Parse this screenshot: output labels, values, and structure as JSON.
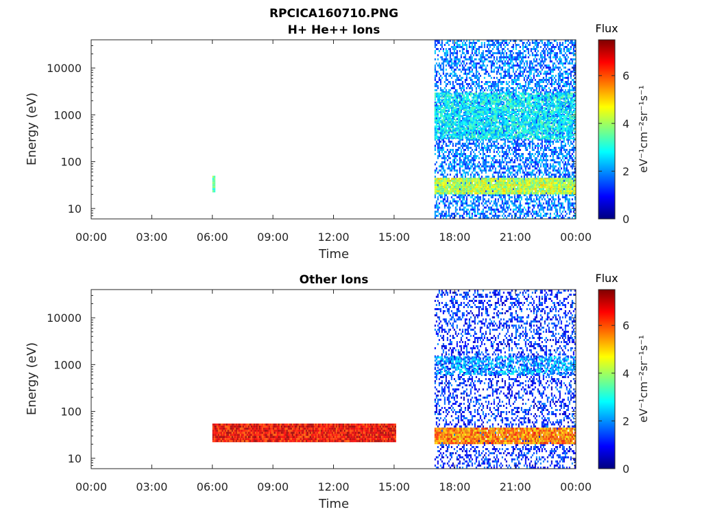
{
  "figure": {
    "title": "RPCICA160710.PNG"
  },
  "colorscale": {
    "stops": [
      "#00007f",
      "#0000ff",
      "#007fff",
      "#00ffff",
      "#7fff7f",
      "#ffff00",
      "#ff7f00",
      "#ff0000",
      "#7f0000"
    ]
  },
  "chart_data": [
    {
      "type": "heatmap",
      "title": "H+ He++ Ions",
      "xlabel": "Time",
      "ylabel": "Energy (eV)",
      "x_ticks": [
        "00:00",
        "03:00",
        "06:00",
        "09:00",
        "12:00",
        "15:00",
        "18:00",
        "21:00",
        "00:00"
      ],
      "xlim_hours": [
        0,
        24
      ],
      "y_scale": "log",
      "y_ticks": [
        {
          "label": "10",
          "value": 10
        },
        {
          "label": "100",
          "value": 100
        },
        {
          "label": "1000",
          "value": 1000
        },
        {
          "label": "10000",
          "value": 10000
        }
      ],
      "ylim": [
        6,
        40000
      ],
      "colorbar": {
        "title": "Flux",
        "unit_label": "eV⁻¹cm⁻²sr⁻¹s⁻¹",
        "ticks": [
          "0",
          "2",
          "4",
          "6"
        ],
        "range": [
          0,
          7.5
        ]
      },
      "regions": [
        {
          "t_start": 6.0,
          "t_end": 6.15,
          "e_min": 22,
          "e_max": 50,
          "flux": 3.4,
          "density": 1.0
        },
        {
          "t_start": 17.0,
          "t_end": 24.0,
          "e_min": 6,
          "e_max": 40000,
          "flux": 1.8,
          "density": 0.55
        },
        {
          "t_start": 17.0,
          "t_end": 24.0,
          "e_min": 20,
          "e_max": 45,
          "flux": 4.2,
          "density": 0.95
        },
        {
          "t_start": 17.0,
          "t_end": 24.0,
          "e_min": 300,
          "e_max": 3000,
          "flux": 2.8,
          "density": 0.75
        }
      ]
    },
    {
      "type": "heatmap",
      "title": "Other Ions",
      "xlabel": "Time",
      "ylabel": "Energy (eV)",
      "x_ticks": [
        "00:00",
        "03:00",
        "06:00",
        "09:00",
        "12:00",
        "15:00",
        "18:00",
        "21:00",
        "00:00"
      ],
      "xlim_hours": [
        0,
        24
      ],
      "y_scale": "log",
      "y_ticks": [
        {
          "label": "10",
          "value": 10
        },
        {
          "label": "100",
          "value": 100
        },
        {
          "label": "1000",
          "value": 1000
        },
        {
          "label": "10000",
          "value": 10000
        }
      ],
      "ylim": [
        6,
        40000
      ],
      "colorbar": {
        "title": "Flux",
        "unit_label": "eV⁻¹cm⁻²sr⁻¹s⁻¹",
        "ticks": [
          "0",
          "2",
          "4",
          "6"
        ],
        "range": [
          0,
          7.5
        ]
      },
      "regions": [
        {
          "t_start": 6.0,
          "t_end": 15.1,
          "e_min": 22,
          "e_max": 55,
          "flux": 6.6,
          "density": 1.0
        },
        {
          "t_start": 17.0,
          "t_end": 24.0,
          "e_min": 6,
          "e_max": 40000,
          "flux": 1.2,
          "density": 0.35
        },
        {
          "t_start": 17.0,
          "t_end": 24.0,
          "e_min": 20,
          "e_max": 45,
          "flux": 5.6,
          "density": 0.95
        },
        {
          "t_start": 17.0,
          "t_end": 24.0,
          "e_min": 600,
          "e_max": 1500,
          "flux": 2.2,
          "density": 0.6
        }
      ]
    }
  ]
}
